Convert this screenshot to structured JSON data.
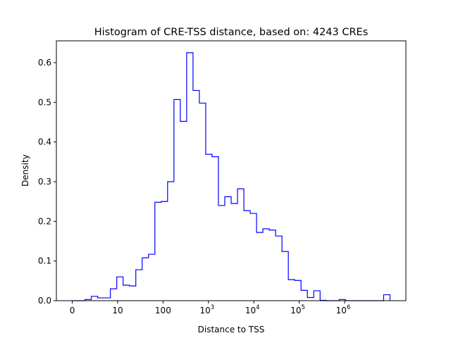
{
  "chart_data": {
    "type": "bar",
    "histtype": "step",
    "title": "Histogram of CRE-TSS distance, based on: 4243 CREs",
    "xlabel": "Distance to TSS",
    "ylabel": "Density",
    "x_scale": "log10",
    "bin_edges_log10": {
      "start": 0,
      "stop": 7.0,
      "bins": 50
    },
    "xlim_log10": [
      -0.35,
      7.35
    ],
    "ylim": [
      0,
      0.655
    ],
    "values": [
      0,
      0,
      0.003,
      0.011,
      0.007,
      0.007,
      0.03,
      0.06,
      0.039,
      0.037,
      0.078,
      0.108,
      0.117,
      0.248,
      0.25,
      0.3,
      0.507,
      0.452,
      0.625,
      0.53,
      0.498,
      0.369,
      0.363,
      0.24,
      0.262,
      0.245,
      0.282,
      0.227,
      0.22,
      0.172,
      0.181,
      0.178,
      0.163,
      0.124,
      0.053,
      0.051,
      0.026,
      0.008,
      0.025,
      0.001,
      0,
      0,
      0.003,
      0,
      0,
      0,
      0,
      0,
      0,
      0.015
    ],
    "line_color": "#0000ff",
    "x_ticks": [
      {
        "pos": 0,
        "base": "0",
        "exp": ""
      },
      {
        "pos": 1,
        "base": "10",
        "exp": ""
      },
      {
        "pos": 2,
        "base": "100",
        "exp": ""
      },
      {
        "pos": 3,
        "base": "10",
        "exp": "3"
      },
      {
        "pos": 4,
        "base": "10",
        "exp": "4"
      },
      {
        "pos": 5,
        "base": "10",
        "exp": "5"
      },
      {
        "pos": 6,
        "base": "10",
        "exp": "6"
      }
    ],
    "y_ticks": [
      {
        "value": 0.0,
        "label": "0.0"
      },
      {
        "value": 0.1,
        "label": "0.1"
      },
      {
        "value": 0.2,
        "label": "0.2"
      },
      {
        "value": 0.3,
        "label": "0.3"
      },
      {
        "value": 0.4,
        "label": "0.4"
      },
      {
        "value": 0.5,
        "label": "0.5"
      },
      {
        "value": 0.6,
        "label": "0.6"
      }
    ],
    "grid": false,
    "legend": "none"
  }
}
